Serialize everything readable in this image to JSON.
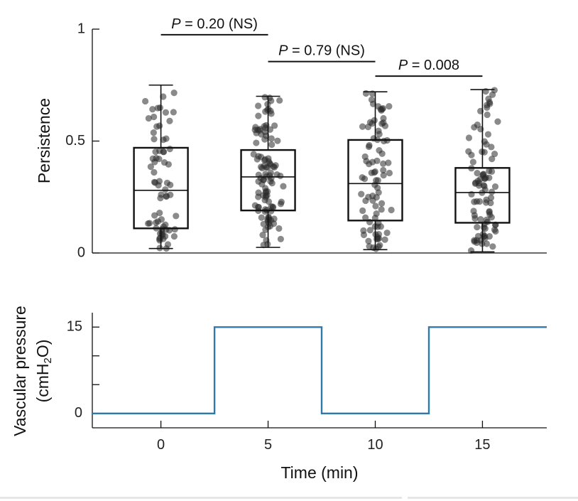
{
  "chart_data": [
    {
      "type": "box",
      "ylabel": "Persistence",
      "ylim": [
        0,
        1
      ],
      "yticks": [
        0,
        0.5,
        1
      ],
      "ytick_labels": [
        "0",
        "0.5",
        "1"
      ],
      "categories": [
        "0",
        "5",
        "10",
        "15"
      ],
      "boxes": [
        {
          "x": 0,
          "min": 0.02,
          "q1": 0.11,
          "median": 0.28,
          "q3": 0.47,
          "max": 0.75,
          "n": 70
        },
        {
          "x": 5,
          "min": 0.025,
          "q1": 0.19,
          "median": 0.34,
          "q3": 0.46,
          "max": 0.7,
          "n": 110
        },
        {
          "x": 10,
          "min": 0.015,
          "q1": 0.145,
          "median": 0.31,
          "q3": 0.505,
          "max": 0.72,
          "n": 85
        },
        {
          "x": 15,
          "min": 0.005,
          "q1": 0.135,
          "median": 0.27,
          "q3": 0.38,
          "max": 0.73,
          "n": 90
        }
      ],
      "comparisons": [
        {
          "from": 0,
          "to": 5,
          "y": 0.975,
          "prefix": "P",
          "text": " = 0.20 (NS)"
        },
        {
          "from": 5,
          "to": 10,
          "y": 0.855,
          "prefix": "P",
          "text": " = 0.79 (NS)"
        },
        {
          "from": 10,
          "to": 15,
          "y": 0.79,
          "prefix": "P",
          "text": " = 0.008"
        }
      ],
      "point_color": "#2a2a2a"
    },
    {
      "type": "line",
      "ylabel_line1": "Vascular pressure",
      "ylabel_unit": [
        "(cmH",
        "2",
        "O)"
      ],
      "xlabel": "Time (min)",
      "xlim": [
        -3.2,
        18
      ],
      "xticks": [
        0,
        5,
        10,
        15
      ],
      "xtick_labels": [
        "0",
        "5",
        "10",
        "15"
      ],
      "ylim": [
        -2.5,
        17.5
      ],
      "yticks": [
        0,
        15
      ],
      "ytick_labels": [
        "0",
        "15"
      ],
      "minor_yticks": [
        5,
        10
      ],
      "color": "#2f7aa8",
      "x": [
        -3.2,
        2.5,
        2.5,
        7.5,
        7.5,
        12.5,
        12.5,
        18
      ],
      "y": [
        0,
        0,
        15,
        15,
        0,
        0,
        15,
        15
      ]
    }
  ]
}
